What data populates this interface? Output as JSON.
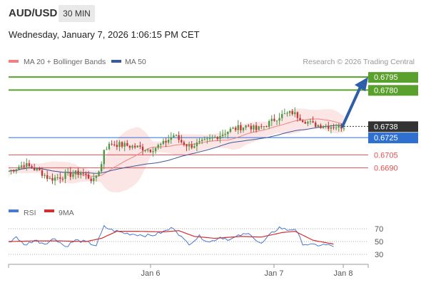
{
  "header": {
    "symbol": "AUD/USD",
    "timeframe": "30 MIN",
    "datetime": "Wednesday, January 7, 2026 1:06:15 PM CET"
  },
  "colors": {
    "ma20": "#f08080",
    "ma50": "#3a5a9c",
    "resistance": "#5aa02c",
    "support_blue": "#2f6fd0",
    "support_red": "#e05050",
    "arrow": "#2d5fa8",
    "up_candle": "#4d9a46",
    "down_candle": "#c33636",
    "rsi": "#4a78d0",
    "rsi_ma": "#d03030",
    "band_fill": "#fbdcdc"
  },
  "chart_data": [
    {
      "type": "candlestick",
      "legend": [
        {
          "name": "MA 20 + Bollinger Bands",
          "color": "#f08080"
        },
        {
          "name": "MA 50",
          "color": "#3a5a9c"
        }
      ],
      "credit": "Research © 2026 Trading Central",
      "levels": [
        {
          "value": 0.6795,
          "label": "0.6795",
          "style": "resistance",
          "color": "#5aa02c",
          "boxed": true
        },
        {
          "value": 0.678,
          "label": "0.6780",
          "style": "resistance",
          "color": "#5aa02c",
          "boxed": true
        },
        {
          "value": 0.6738,
          "label": "0.6738",
          "style": "current",
          "color": "#333333",
          "boxed": true
        },
        {
          "value": 0.6725,
          "label": "0.6725",
          "style": "pivot",
          "color": "#2f6fd0",
          "boxed": true
        },
        {
          "value": 0.6705,
          "label": "0.6705",
          "style": "support",
          "color": "#e05050",
          "boxed": false
        },
        {
          "value": 0.669,
          "label": "0.6690",
          "style": "support",
          "color": "#e05050",
          "boxed": false
        }
      ],
      "ylim": [
        0.666,
        0.6805
      ],
      "x_ticks": [
        "Jan 6",
        "Jan 7",
        "Jan 8"
      ],
      "candle_count": 130,
      "price_path": [
        [
          0,
          0.6686
        ],
        [
          6,
          0.6694
        ],
        [
          12,
          0.6686
        ],
        [
          16,
          0.6677
        ],
        [
          22,
          0.6681
        ],
        [
          28,
          0.6685
        ],
        [
          33,
          0.6675
        ],
        [
          36,
          0.6694
        ],
        [
          37,
          0.6712
        ],
        [
          40,
          0.6718
        ],
        [
          50,
          0.6714
        ],
        [
          55,
          0.6711
        ],
        [
          60,
          0.6718
        ],
        [
          64,
          0.6728
        ],
        [
          67,
          0.672
        ],
        [
          70,
          0.6715
        ],
        [
          76,
          0.672
        ],
        [
          82,
          0.6728
        ],
        [
          86,
          0.6734
        ],
        [
          93,
          0.6739
        ],
        [
          96,
          0.6734
        ],
        [
          100,
          0.674
        ],
        [
          105,
          0.675
        ],
        [
          110,
          0.6754
        ],
        [
          114,
          0.6746
        ],
        [
          118,
          0.674
        ],
        [
          125,
          0.6738
        ],
        [
          130,
          0.6738
        ]
      ],
      "forecast_target": 0.6795
    },
    {
      "type": "line",
      "legend": [
        {
          "name": "RSI",
          "color": "#4a78d0"
        },
        {
          "name": "9MA",
          "color": "#d03030"
        }
      ],
      "ylim": [
        20,
        80
      ],
      "y_ticks": [
        70,
        50,
        30
      ],
      "rsi_path": [
        [
          0,
          48
        ],
        [
          3,
          58
        ],
        [
          6,
          44
        ],
        [
          10,
          52
        ],
        [
          14,
          47
        ],
        [
          18,
          55
        ],
        [
          22,
          42
        ],
        [
          26,
          52
        ],
        [
          30,
          49
        ],
        [
          34,
          44
        ],
        [
          37,
          73
        ],
        [
          40,
          68
        ],
        [
          45,
          63
        ],
        [
          50,
          61
        ],
        [
          55,
          59
        ],
        [
          60,
          65
        ],
        [
          64,
          72
        ],
        [
          68,
          52
        ],
        [
          70,
          47
        ],
        [
          74,
          58
        ],
        [
          78,
          49
        ],
        [
          82,
          57
        ],
        [
          86,
          53
        ],
        [
          90,
          60
        ],
        [
          94,
          62
        ],
        [
          96,
          52
        ],
        [
          98,
          46
        ],
        [
          102,
          63
        ],
        [
          105,
          72
        ],
        [
          108,
          68
        ],
        [
          111,
          70
        ],
        [
          114,
          47
        ],
        [
          118,
          44
        ],
        [
          122,
          45
        ],
        [
          126,
          43
        ]
      ],
      "ma_path": [
        [
          0,
          50
        ],
        [
          10,
          51
        ],
        [
          20,
          51
        ],
        [
          30,
          50
        ],
        [
          36,
          55
        ],
        [
          42,
          66
        ],
        [
          50,
          66
        ],
        [
          60,
          65
        ],
        [
          66,
          67
        ],
        [
          72,
          58
        ],
        [
          80,
          55
        ],
        [
          90,
          58
        ],
        [
          98,
          57
        ],
        [
          106,
          64
        ],
        [
          111,
          66
        ],
        [
          118,
          52
        ],
        [
          126,
          46
        ]
      ]
    }
  ]
}
